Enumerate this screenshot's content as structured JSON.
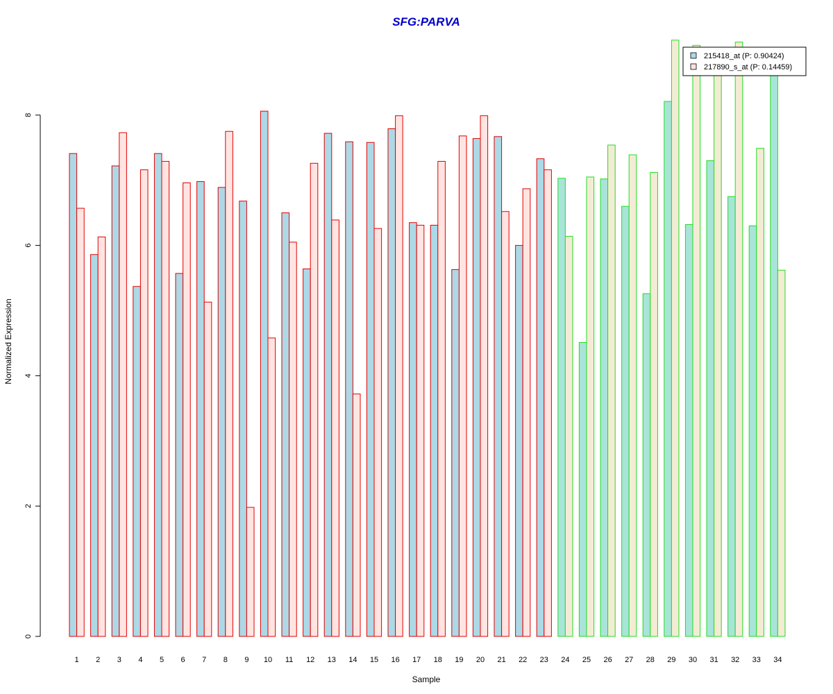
{
  "chart_data": {
    "type": "bar",
    "title": "SFG:PARVA",
    "xlabel": "Sample",
    "ylabel": "Normalized Expression",
    "ylim": [
      0,
      9.2
    ],
    "yticks": [
      0,
      2,
      4,
      6,
      8
    ],
    "grid": false,
    "legend_position": "top-right",
    "categories": [
      "1",
      "2",
      "3",
      "4",
      "5",
      "6",
      "7",
      "8",
      "9",
      "10",
      "11",
      "12",
      "13",
      "14",
      "15",
      "16",
      "17",
      "18",
      "19",
      "20",
      "21",
      "22",
      "23",
      "24",
      "25",
      "26",
      "27",
      "28",
      "29",
      "30",
      "31",
      "32",
      "33",
      "34"
    ],
    "group_split_after": 23,
    "series": [
      {
        "name": "215418_at (P: 0.90424)",
        "values": [
          7.41,
          5.86,
          7.22,
          5.37,
          7.41,
          5.57,
          6.98,
          6.89,
          6.68,
          8.06,
          6.5,
          5.64,
          7.72,
          7.59,
          7.58,
          7.79,
          6.35,
          6.31,
          5.63,
          7.64,
          7.67,
          6.0,
          7.33,
          7.03,
          4.51,
          7.02,
          6.6,
          5.26,
          8.21,
          6.32,
          7.3,
          6.75,
          6.3,
          8.62
        ],
        "fill": "#add8e6",
        "fill_group2": "#a8e4d8"
      },
      {
        "name": "217890_s_at (P: 0.14459)",
        "values": [
          6.57,
          6.13,
          7.73,
          7.16,
          7.29,
          6.96,
          5.13,
          7.75,
          1.98,
          4.58,
          6.05,
          7.26,
          6.39,
          3.72,
          6.26,
          7.99,
          6.31,
          7.29,
          7.68,
          7.99,
          6.52,
          6.87,
          7.16,
          6.14,
          7.05,
          7.54,
          7.39,
          7.12,
          9.15,
          9.07,
          8.65,
          9.12,
          7.49,
          5.62
        ],
        "fill": "#ffe4e1",
        "fill_group2": "#f3ecd4"
      }
    ],
    "border_group1": "#e00000",
    "border_group2": "#22dd22"
  }
}
